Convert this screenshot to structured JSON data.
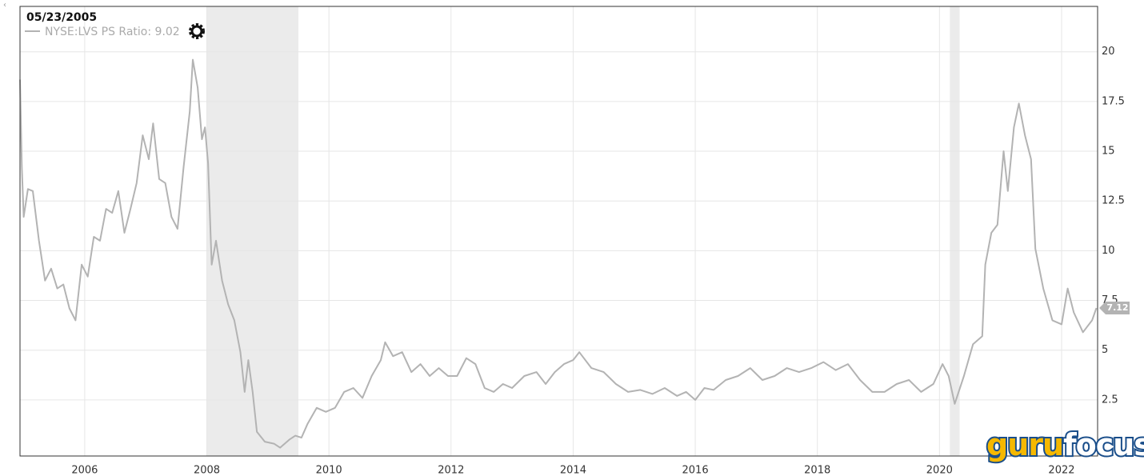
{
  "chart_data": {
    "type": "line",
    "cursor_date": "05/23/2005",
    "legend_text": "NYSE:LVS PS Ratio: 9.02",
    "last_value": 7.12,
    "logo": [
      "guru",
      "focus"
    ],
    "x": [
      2004.94,
      2004.97,
      2005.0,
      2005.07,
      2005.15,
      2005.25,
      2005.35,
      2005.45,
      2005.55,
      2005.65,
      2005.75,
      2005.85,
      2005.95,
      2006.05,
      2006.15,
      2006.25,
      2006.35,
      2006.45,
      2006.55,
      2006.65,
      2006.75,
      2006.85,
      2006.95,
      2007.05,
      2007.12,
      2007.22,
      2007.32,
      2007.42,
      2007.52,
      2007.62,
      2007.72,
      2007.77,
      2007.85,
      2007.92,
      2007.97,
      2008.02,
      2008.08,
      2008.15,
      2008.25,
      2008.35,
      2008.45,
      2008.55,
      2008.62,
      2008.68,
      2008.75,
      2008.82,
      2008.95,
      2009.1,
      2009.2,
      2009.35,
      2009.45,
      2009.55,
      2009.65,
      2009.8,
      2009.95,
      2010.1,
      2010.25,
      2010.4,
      2010.55,
      2010.7,
      2010.85,
      2010.92,
      2011.05,
      2011.2,
      2011.35,
      2011.5,
      2011.65,
      2011.8,
      2011.95,
      2012.1,
      2012.25,
      2012.4,
      2012.55,
      2012.7,
      2012.85,
      2013.0,
      2013.2,
      2013.4,
      2013.55,
      2013.7,
      2013.85,
      2014.0,
      2014.1,
      2014.3,
      2014.5,
      2014.7,
      2014.9,
      2015.1,
      2015.3,
      2015.5,
      2015.7,
      2015.85,
      2016.0,
      2016.15,
      2016.3,
      2016.5,
      2016.7,
      2016.9,
      2017.1,
      2017.3,
      2017.5,
      2017.7,
      2017.9,
      2018.1,
      2018.3,
      2018.5,
      2018.7,
      2018.9,
      2019.1,
      2019.3,
      2019.5,
      2019.7,
      2019.9,
      2020.05,
      2020.15,
      2020.25,
      2020.4,
      2020.55,
      2020.7,
      2020.75,
      2020.85,
      2020.95,
      2021.05,
      2021.12,
      2021.22,
      2021.3,
      2021.4,
      2021.5,
      2021.57,
      2021.7,
      2021.85,
      2022.0,
      2022.1,
      2022.2,
      2022.35,
      2022.5,
      2022.57
    ],
    "series": [
      {
        "name": "NYSE:LVS PS Ratio",
        "color": "#b3b3b3",
        "values": [
          18.6,
          14.2,
          11.7,
          13.1,
          13.0,
          10.5,
          8.5,
          9.1,
          8.1,
          8.3,
          7.1,
          6.5,
          9.3,
          8.7,
          10.7,
          10.5,
          12.1,
          11.9,
          13.0,
          10.9,
          12.1,
          13.4,
          15.8,
          14.6,
          16.4,
          13.6,
          13.4,
          11.7,
          11.1,
          14.2,
          17.0,
          19.6,
          18.2,
          15.6,
          16.2,
          14.4,
          9.3,
          10.5,
          8.5,
          7.3,
          6.5,
          4.9,
          2.9,
          4.5,
          2.9,
          0.9,
          0.4,
          0.3,
          0.1,
          0.5,
          0.7,
          0.6,
          1.3,
          2.1,
          1.9,
          2.1,
          2.9,
          3.1,
          2.6,
          3.7,
          4.5,
          5.4,
          4.7,
          4.9,
          3.9,
          4.3,
          3.7,
          4.1,
          3.7,
          3.7,
          4.6,
          4.3,
          3.1,
          2.9,
          3.3,
          3.1,
          3.7,
          3.9,
          3.3,
          3.9,
          4.3,
          4.5,
          4.9,
          4.1,
          3.9,
          3.3,
          2.9,
          3.0,
          2.8,
          3.1,
          2.7,
          2.9,
          2.5,
          3.1,
          3.0,
          3.5,
          3.7,
          4.1,
          3.5,
          3.7,
          4.1,
          3.9,
          4.1,
          4.4,
          4.0,
          4.3,
          3.5,
          2.9,
          2.9,
          3.3,
          3.5,
          2.9,
          3.3,
          4.3,
          3.7,
          2.3,
          3.7,
          5.3,
          5.7,
          9.3,
          10.9,
          11.3,
          15.0,
          13.0,
          16.2,
          17.4,
          15.8,
          14.6,
          10.1,
          8.1,
          6.5,
          6.3,
          8.1,
          6.9,
          5.9,
          6.5,
          7.12
        ]
      }
    ],
    "recessions": [
      [
        2008.0,
        2009.5
      ],
      [
        2020.17,
        2020.33
      ]
    ],
    "recession_color": "#ebebeb",
    "xlim": [
      2004.94,
      2022.59
    ],
    "xticks": [
      2006,
      2008,
      2010,
      2012,
      2014,
      2016,
      2018,
      2020,
      2022
    ],
    "ylim": [
      -0.32,
      22.28
    ],
    "yticks": [
      2.5,
      5,
      7.5,
      10,
      12.5,
      15,
      17.5,
      20
    ],
    "grid": true
  }
}
